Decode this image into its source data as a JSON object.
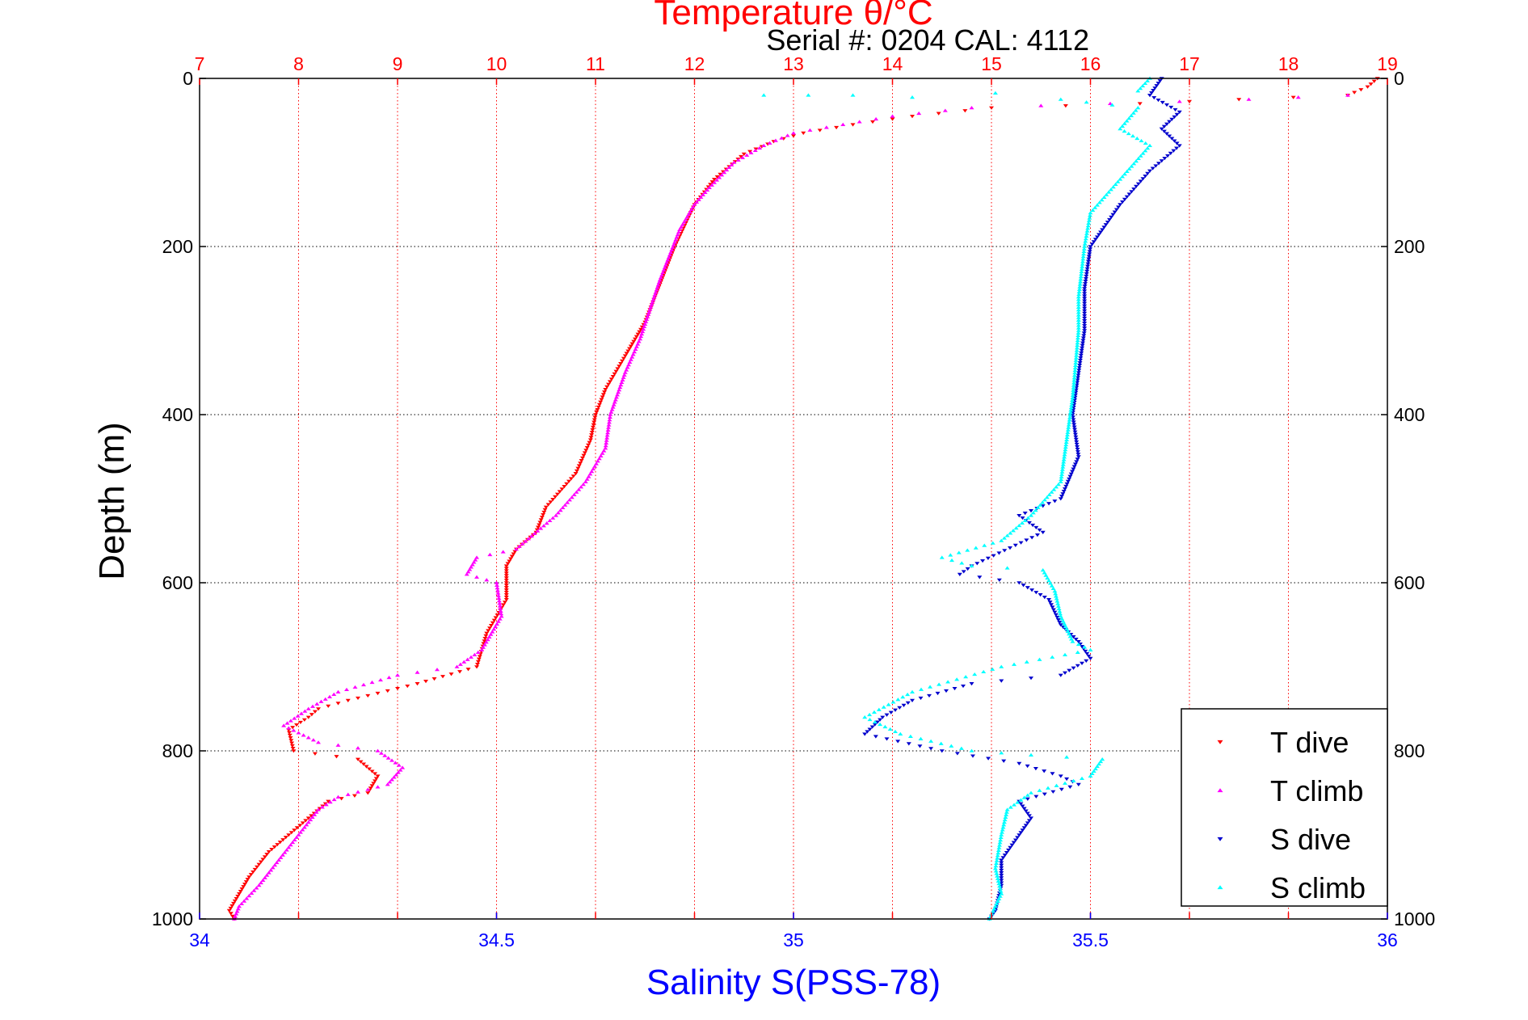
{
  "chart_data": {
    "type": "scatter",
    "title": "Temperature θ/°C",
    "subtitle": "Serial #: 0204  CAL: 4112",
    "xlabel": "Salinity S(PSS-78)",
    "ylabel": "Depth (m)",
    "temperature_axis": {
      "range": [
        7,
        19
      ],
      "ticks": [
        "7",
        "8",
        "9",
        "10",
        "11",
        "12",
        "13",
        "14",
        "15",
        "16",
        "17",
        "18",
        "19"
      ],
      "tick_values": [
        7,
        8,
        9,
        10,
        11,
        12,
        13,
        14,
        15,
        16,
        17,
        18,
        19
      ],
      "color": "#ff0000",
      "grid": true
    },
    "salinity_axis": {
      "range": [
        34,
        36
      ],
      "ticks": [
        "34",
        "34.5",
        "35",
        "35.5",
        "36"
      ],
      "tick_values": [
        34,
        34.5,
        35,
        35.5,
        36
      ],
      "color": "#0000ff"
    },
    "depth_axis": {
      "range": [
        0,
        1000
      ],
      "reversed": true,
      "ticks": [
        "0",
        "200",
        "400",
        "600",
        "800",
        "1000"
      ],
      "tick_values": [
        0,
        200,
        400,
        600,
        800,
        1000
      ],
      "grid": true
    },
    "legend_position": "bottom-right",
    "series": [
      {
        "name": "T dive",
        "axis": "temperature",
        "color": "#ff0000",
        "marker": "triangle-down",
        "points": [
          [
            18.9,
            0
          ],
          [
            18.8,
            10
          ],
          [
            18.6,
            20
          ],
          [
            17.5,
            25
          ],
          [
            16.5,
            30
          ],
          [
            15.0,
            35
          ],
          [
            14.2,
            45
          ],
          [
            13.6,
            55
          ],
          [
            13.1,
            65
          ],
          [
            12.8,
            75
          ],
          [
            12.5,
            90
          ],
          [
            12.2,
            120
          ],
          [
            12.0,
            150
          ],
          [
            11.9,
            175
          ],
          [
            11.8,
            200
          ],
          [
            11.7,
            230
          ],
          [
            11.6,
            260
          ],
          [
            11.5,
            290
          ],
          [
            11.4,
            310
          ],
          [
            11.3,
            330
          ],
          [
            11.1,
            370
          ],
          [
            11.0,
            400
          ],
          [
            10.95,
            430
          ],
          [
            10.8,
            470
          ],
          [
            10.5,
            510
          ],
          [
            10.4,
            540
          ],
          [
            10.2,
            560
          ],
          [
            10.1,
            580
          ],
          [
            10.1,
            600
          ],
          [
            10.1,
            620
          ],
          [
            9.9,
            660
          ],
          [
            9.8,
            700
          ],
          [
            9.2,
            720
          ],
          [
            8.5,
            740
          ],
          [
            8.2,
            750
          ],
          [
            8.1,
            760
          ],
          [
            7.9,
            775
          ],
          [
            7.95,
            800
          ],
          [
            8.6,
            810
          ],
          [
            8.8,
            830
          ],
          [
            8.7,
            850
          ],
          [
            8.3,
            860
          ],
          [
            8.1,
            880
          ],
          [
            7.9,
            900
          ],
          [
            7.7,
            920
          ],
          [
            7.5,
            950
          ],
          [
            7.4,
            970
          ],
          [
            7.3,
            990
          ],
          [
            7.35,
            1000
          ]
        ]
      },
      {
        "name": "T climb",
        "axis": "temperature",
        "color": "#ff00ff",
        "marker": "triangle-up",
        "points": [
          [
            18.6,
            20
          ],
          [
            17.6,
            25
          ],
          [
            16.2,
            30
          ],
          [
            14.8,
            35
          ],
          [
            14.0,
            45
          ],
          [
            13.5,
            55
          ],
          [
            13.0,
            65
          ],
          [
            12.7,
            80
          ],
          [
            12.4,
            100
          ],
          [
            12.15,
            130
          ],
          [
            12.0,
            150
          ],
          [
            11.85,
            180
          ],
          [
            11.75,
            210
          ],
          [
            11.65,
            240
          ],
          [
            11.55,
            275
          ],
          [
            11.45,
            310
          ],
          [
            11.3,
            350
          ],
          [
            11.15,
            400
          ],
          [
            11.1,
            440
          ],
          [
            10.9,
            480
          ],
          [
            10.6,
            520
          ],
          [
            10.2,
            560
          ],
          [
            9.8,
            570
          ],
          [
            9.7,
            590
          ],
          [
            10.0,
            600
          ],
          [
            10.05,
            640
          ],
          [
            9.85,
            680
          ],
          [
            9.6,
            700
          ],
          [
            9.0,
            710
          ],
          [
            8.4,
            730
          ],
          [
            8.1,
            750
          ],
          [
            7.85,
            770
          ],
          [
            8.2,
            790
          ],
          [
            8.8,
            800
          ],
          [
            9.05,
            820
          ],
          [
            8.9,
            840
          ],
          [
            8.4,
            855
          ],
          [
            8.2,
            870
          ],
          [
            8.0,
            900
          ],
          [
            7.8,
            930
          ],
          [
            7.6,
            960
          ],
          [
            7.4,
            985
          ],
          [
            7.35,
            1000
          ]
        ]
      },
      {
        "name": "S dive",
        "axis": "salinity",
        "color": "#0000cd",
        "marker": "triangle-down",
        "points": [
          [
            35.62,
            0
          ],
          [
            35.6,
            20
          ],
          [
            35.65,
            40
          ],
          [
            35.62,
            60
          ],
          [
            35.65,
            80
          ],
          [
            35.6,
            110
          ],
          [
            35.55,
            150
          ],
          [
            35.52,
            180
          ],
          [
            35.5,
            200
          ],
          [
            35.49,
            250
          ],
          [
            35.49,
            300
          ],
          [
            35.48,
            350
          ],
          [
            35.47,
            400
          ],
          [
            35.48,
            450
          ],
          [
            35.45,
            500
          ],
          [
            35.38,
            520
          ],
          [
            35.42,
            540
          ],
          [
            35.3,
            580
          ],
          [
            35.28,
            590
          ],
          [
            35.38,
            600
          ],
          [
            35.43,
            620
          ],
          [
            35.45,
            650
          ],
          [
            35.48,
            670
          ],
          [
            35.5,
            690
          ],
          [
            35.45,
            710
          ],
          [
            35.3,
            720
          ],
          [
            35.2,
            740
          ],
          [
            35.15,
            760
          ],
          [
            35.12,
            780
          ],
          [
            35.25,
            800
          ],
          [
            35.38,
            815
          ],
          [
            35.45,
            830
          ],
          [
            35.48,
            840
          ],
          [
            35.38,
            860
          ],
          [
            35.4,
            880
          ],
          [
            35.38,
            900
          ],
          [
            35.35,
            930
          ],
          [
            35.35,
            960
          ],
          [
            35.34,
            990
          ],
          [
            35.33,
            1000
          ]
        ]
      },
      {
        "name": "S climb",
        "axis": "salinity",
        "color": "#00ffff",
        "marker": "triangle-up",
        "points": [
          [
            35.6,
            0
          ],
          [
            35.58,
            15
          ],
          [
            35.1,
            20
          ],
          [
            34.95,
            20
          ],
          [
            35.45,
            25
          ],
          [
            35.58,
            35
          ],
          [
            35.55,
            60
          ],
          [
            35.6,
            80
          ],
          [
            35.55,
            120
          ],
          [
            35.5,
            160
          ],
          [
            35.49,
            200
          ],
          [
            35.48,
            260
          ],
          [
            35.48,
            300
          ],
          [
            35.47,
            380
          ],
          [
            35.46,
            430
          ],
          [
            35.45,
            480
          ],
          [
            35.4,
            520
          ],
          [
            35.35,
            550
          ],
          [
            35.25,
            570
          ],
          [
            35.3,
            580
          ],
          [
            35.42,
            585
          ],
          [
            35.44,
            610
          ],
          [
            35.45,
            640
          ],
          [
            35.47,
            670
          ],
          [
            35.5,
            680
          ],
          [
            35.35,
            700
          ],
          [
            35.2,
            730
          ],
          [
            35.12,
            760
          ],
          [
            35.18,
            780
          ],
          [
            35.3,
            800
          ],
          [
            35.4,
            805
          ],
          [
            35.52,
            810
          ],
          [
            35.5,
            830
          ],
          [
            35.4,
            850
          ],
          [
            35.36,
            870
          ],
          [
            35.35,
            900
          ],
          [
            35.34,
            940
          ],
          [
            35.35,
            970
          ],
          [
            35.33,
            1000
          ]
        ]
      }
    ]
  }
}
